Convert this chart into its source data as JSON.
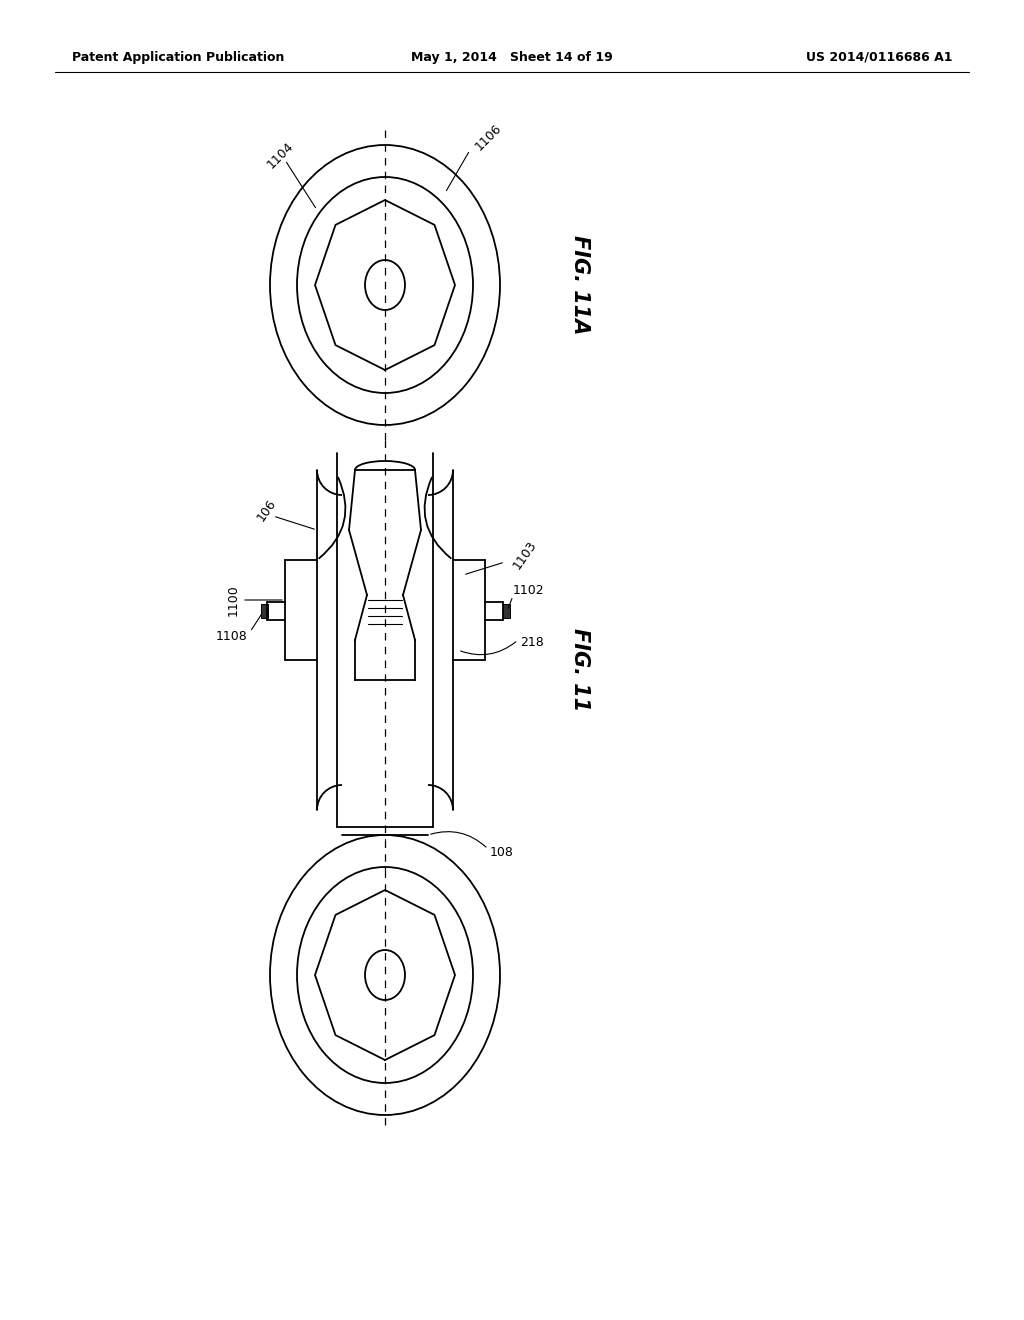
{
  "bg_color": "#ffffff",
  "header_left": "Patent Application Publication",
  "header_mid": "May 1, 2014   Sheet 14 of 19",
  "header_right": "US 2014/0116686 A1",
  "fig11_label": "FIG. 11",
  "fig11a_label": "FIG. 11A"
}
